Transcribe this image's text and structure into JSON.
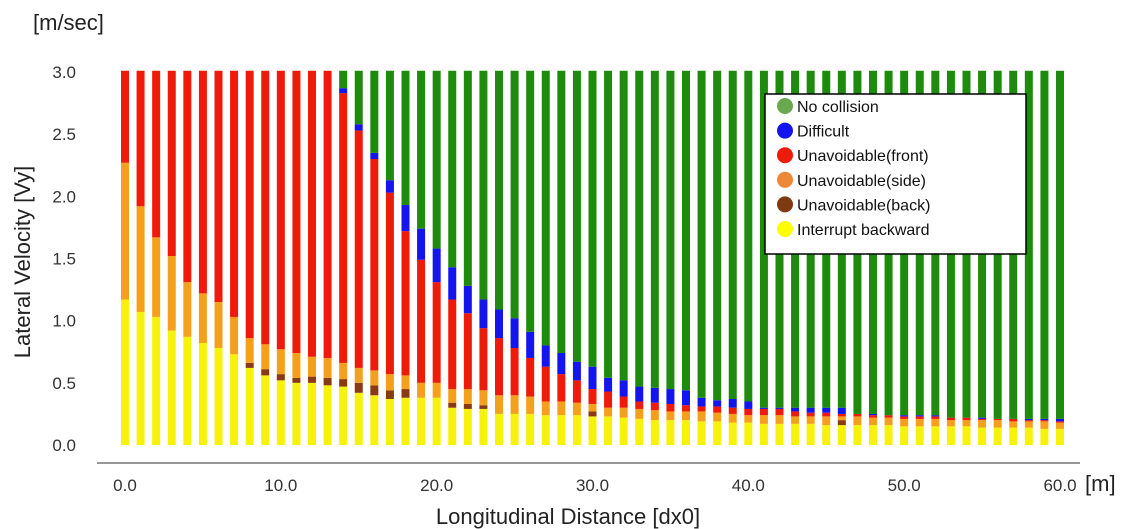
{
  "chart_data": {
    "type": "bar",
    "stacked": true,
    "xlabel": "Longitudinal Distance [dx0]",
    "ylabel": "Lateral Velocity [Vy]",
    "x_unit": "[m]",
    "y_unit": "[m/sec]",
    "xlim": [
      0,
      60
    ],
    "ylim": [
      0,
      3.0
    ],
    "x_ticks": [
      "0.0",
      "10.0",
      "20.0",
      "30.0",
      "40.0",
      "50.0",
      "60.0"
    ],
    "y_ticks": [
      "0.0",
      "0.5",
      "1.0",
      "1.5",
      "2.0",
      "2.5",
      "3.0"
    ],
    "legend_position": "top-right",
    "colors": {
      "No collision": "#1e8a0e",
      "Difficult": "#1414ee",
      "Unavoidable(front)": "#ee1a0a",
      "Unavoidable(side)": "#f5a01c",
      "Unavoidable(back)": "#8a3a12",
      "Interrupt backward": "#f7f20c"
    },
    "legend_dot_colors": [
      "#6aa84f",
      "#1414ee",
      "#ee1a0a",
      "#ec8838",
      "#7f3a12",
      "#ffff00"
    ],
    "legend": [
      "No collision",
      "Difficult",
      "Unavoidable(front)",
      "Unavoidable(side)",
      " Unavoidable(back)",
      "Interrupt backward"
    ],
    "x": [
      0,
      1,
      2,
      3,
      4,
      5,
      6,
      7,
      8,
      9,
      10,
      11,
      12,
      13,
      14,
      15,
      16,
      17,
      18,
      19,
      20,
      21,
      22,
      23,
      24,
      25,
      26,
      27,
      28,
      29,
      30,
      31,
      32,
      33,
      34,
      35,
      36,
      37,
      38,
      39,
      40,
      41,
      42,
      43,
      44,
      45,
      46,
      47,
      48,
      49,
      50,
      51,
      52,
      53,
      54,
      55,
      56,
      57,
      58,
      59,
      60
    ],
    "interrupt_backward_upper": [
      1.17,
      1.07,
      1.03,
      0.92,
      0.87,
      0.82,
      0.78,
      0.73,
      0.62,
      0.56,
      0.52,
      0.5,
      0.5,
      0.48,
      0.47,
      0.42,
      0.4,
      0.37,
      0.38,
      0.38,
      0.38,
      0.3,
      0.29,
      0.29,
      0.25,
      0.25,
      0.25,
      0.24,
      0.24,
      0.24,
      0.23,
      0.23,
      0.22,
      0.21,
      0.2,
      0.2,
      0.2,
      0.19,
      0.19,
      0.18,
      0.18,
      0.17,
      0.17,
      0.17,
      0.17,
      0.16,
      0.16,
      0.16,
      0.16,
      0.16,
      0.15,
      0.15,
      0.15,
      0.15,
      0.15,
      0.14,
      0.14,
      0.14,
      0.14,
      0.13,
      0.13
    ],
    "back_upper": [
      1.17,
      1.07,
      1.03,
      0.92,
      0.87,
      0.82,
      0.78,
      0.73,
      0.66,
      0.61,
      0.57,
      0.54,
      0.55,
      0.54,
      0.53,
      0.5,
      0.48,
      0.44,
      0.45,
      0.38,
      0.38,
      0.34,
      0.33,
      0.32,
      0.25,
      0.25,
      0.25,
      0.24,
      0.24,
      0.24,
      0.27,
      0.23,
      0.22,
      0.21,
      0.2,
      0.2,
      0.2,
      0.19,
      0.19,
      0.18,
      0.18,
      0.17,
      0.17,
      0.17,
      0.17,
      0.16,
      0.2,
      0.16,
      0.16,
      0.16,
      0.15,
      0.15,
      0.15,
      0.15,
      0.15,
      0.14,
      0.14,
      0.14,
      0.14,
      0.13,
      0.13
    ],
    "side_upper": [
      2.27,
      1.92,
      1.67,
      1.52,
      1.31,
      1.22,
      1.15,
      1.03,
      0.86,
      0.81,
      0.77,
      0.74,
      0.71,
      0.7,
      0.66,
      0.62,
      0.6,
      0.57,
      0.56,
      0.5,
      0.5,
      0.45,
      0.45,
      0.44,
      0.4,
      0.4,
      0.39,
      0.35,
      0.35,
      0.34,
      0.33,
      0.3,
      0.3,
      0.29,
      0.28,
      0.27,
      0.27,
      0.27,
      0.26,
      0.25,
      0.24,
      0.24,
      0.24,
      0.23,
      0.23,
      0.23,
      0.23,
      0.23,
      0.22,
      0.22,
      0.21,
      0.21,
      0.21,
      0.2,
      0.2,
      0.2,
      0.2,
      0.19,
      0.19,
      0.19,
      0.18
    ],
    "front_upper": [
      3.01,
      3.01,
      3.01,
      3.01,
      3.01,
      3.01,
      3.01,
      3.01,
      3.01,
      3.01,
      3.01,
      3.01,
      3.01,
      3.01,
      2.83,
      2.53,
      2.3,
      2.03,
      1.72,
      1.49,
      1.31,
      1.17,
      1.06,
      0.94,
      0.86,
      0.78,
      0.7,
      0.63,
      0.57,
      0.52,
      0.45,
      0.43,
      0.39,
      0.35,
      0.34,
      0.33,
      0.32,
      0.31,
      0.31,
      0.3,
      0.29,
      0.29,
      0.29,
      0.27,
      0.26,
      0.26,
      0.25,
      0.25,
      0.24,
      0.24,
      0.23,
      0.23,
      0.23,
      0.22,
      0.22,
      0.21,
      0.21,
      0.21,
      0.2,
      0.2,
      0.19
    ],
    "difficult_upper": [
      3.01,
      3.01,
      3.01,
      3.01,
      3.01,
      3.01,
      3.01,
      3.01,
      3.01,
      3.01,
      3.01,
      3.01,
      3.01,
      3.01,
      2.87,
      2.58,
      2.35,
      2.13,
      1.93,
      1.74,
      1.58,
      1.43,
      1.28,
      1.17,
      1.09,
      1.02,
      0.91,
      0.8,
      0.74,
      0.67,
      0.63,
      0.54,
      0.52,
      0.47,
      0.46,
      0.45,
      0.44,
      0.38,
      0.36,
      0.37,
      0.35,
      0.3,
      0.3,
      0.3,
      0.3,
      0.3,
      0.3,
      0.25,
      0.25,
      0.24,
      0.24,
      0.24,
      0.24,
      0.22,
      0.22,
      0.22,
      0.21,
      0.21,
      0.21,
      0.21,
      0.21
    ],
    "total": 3.01
  }
}
